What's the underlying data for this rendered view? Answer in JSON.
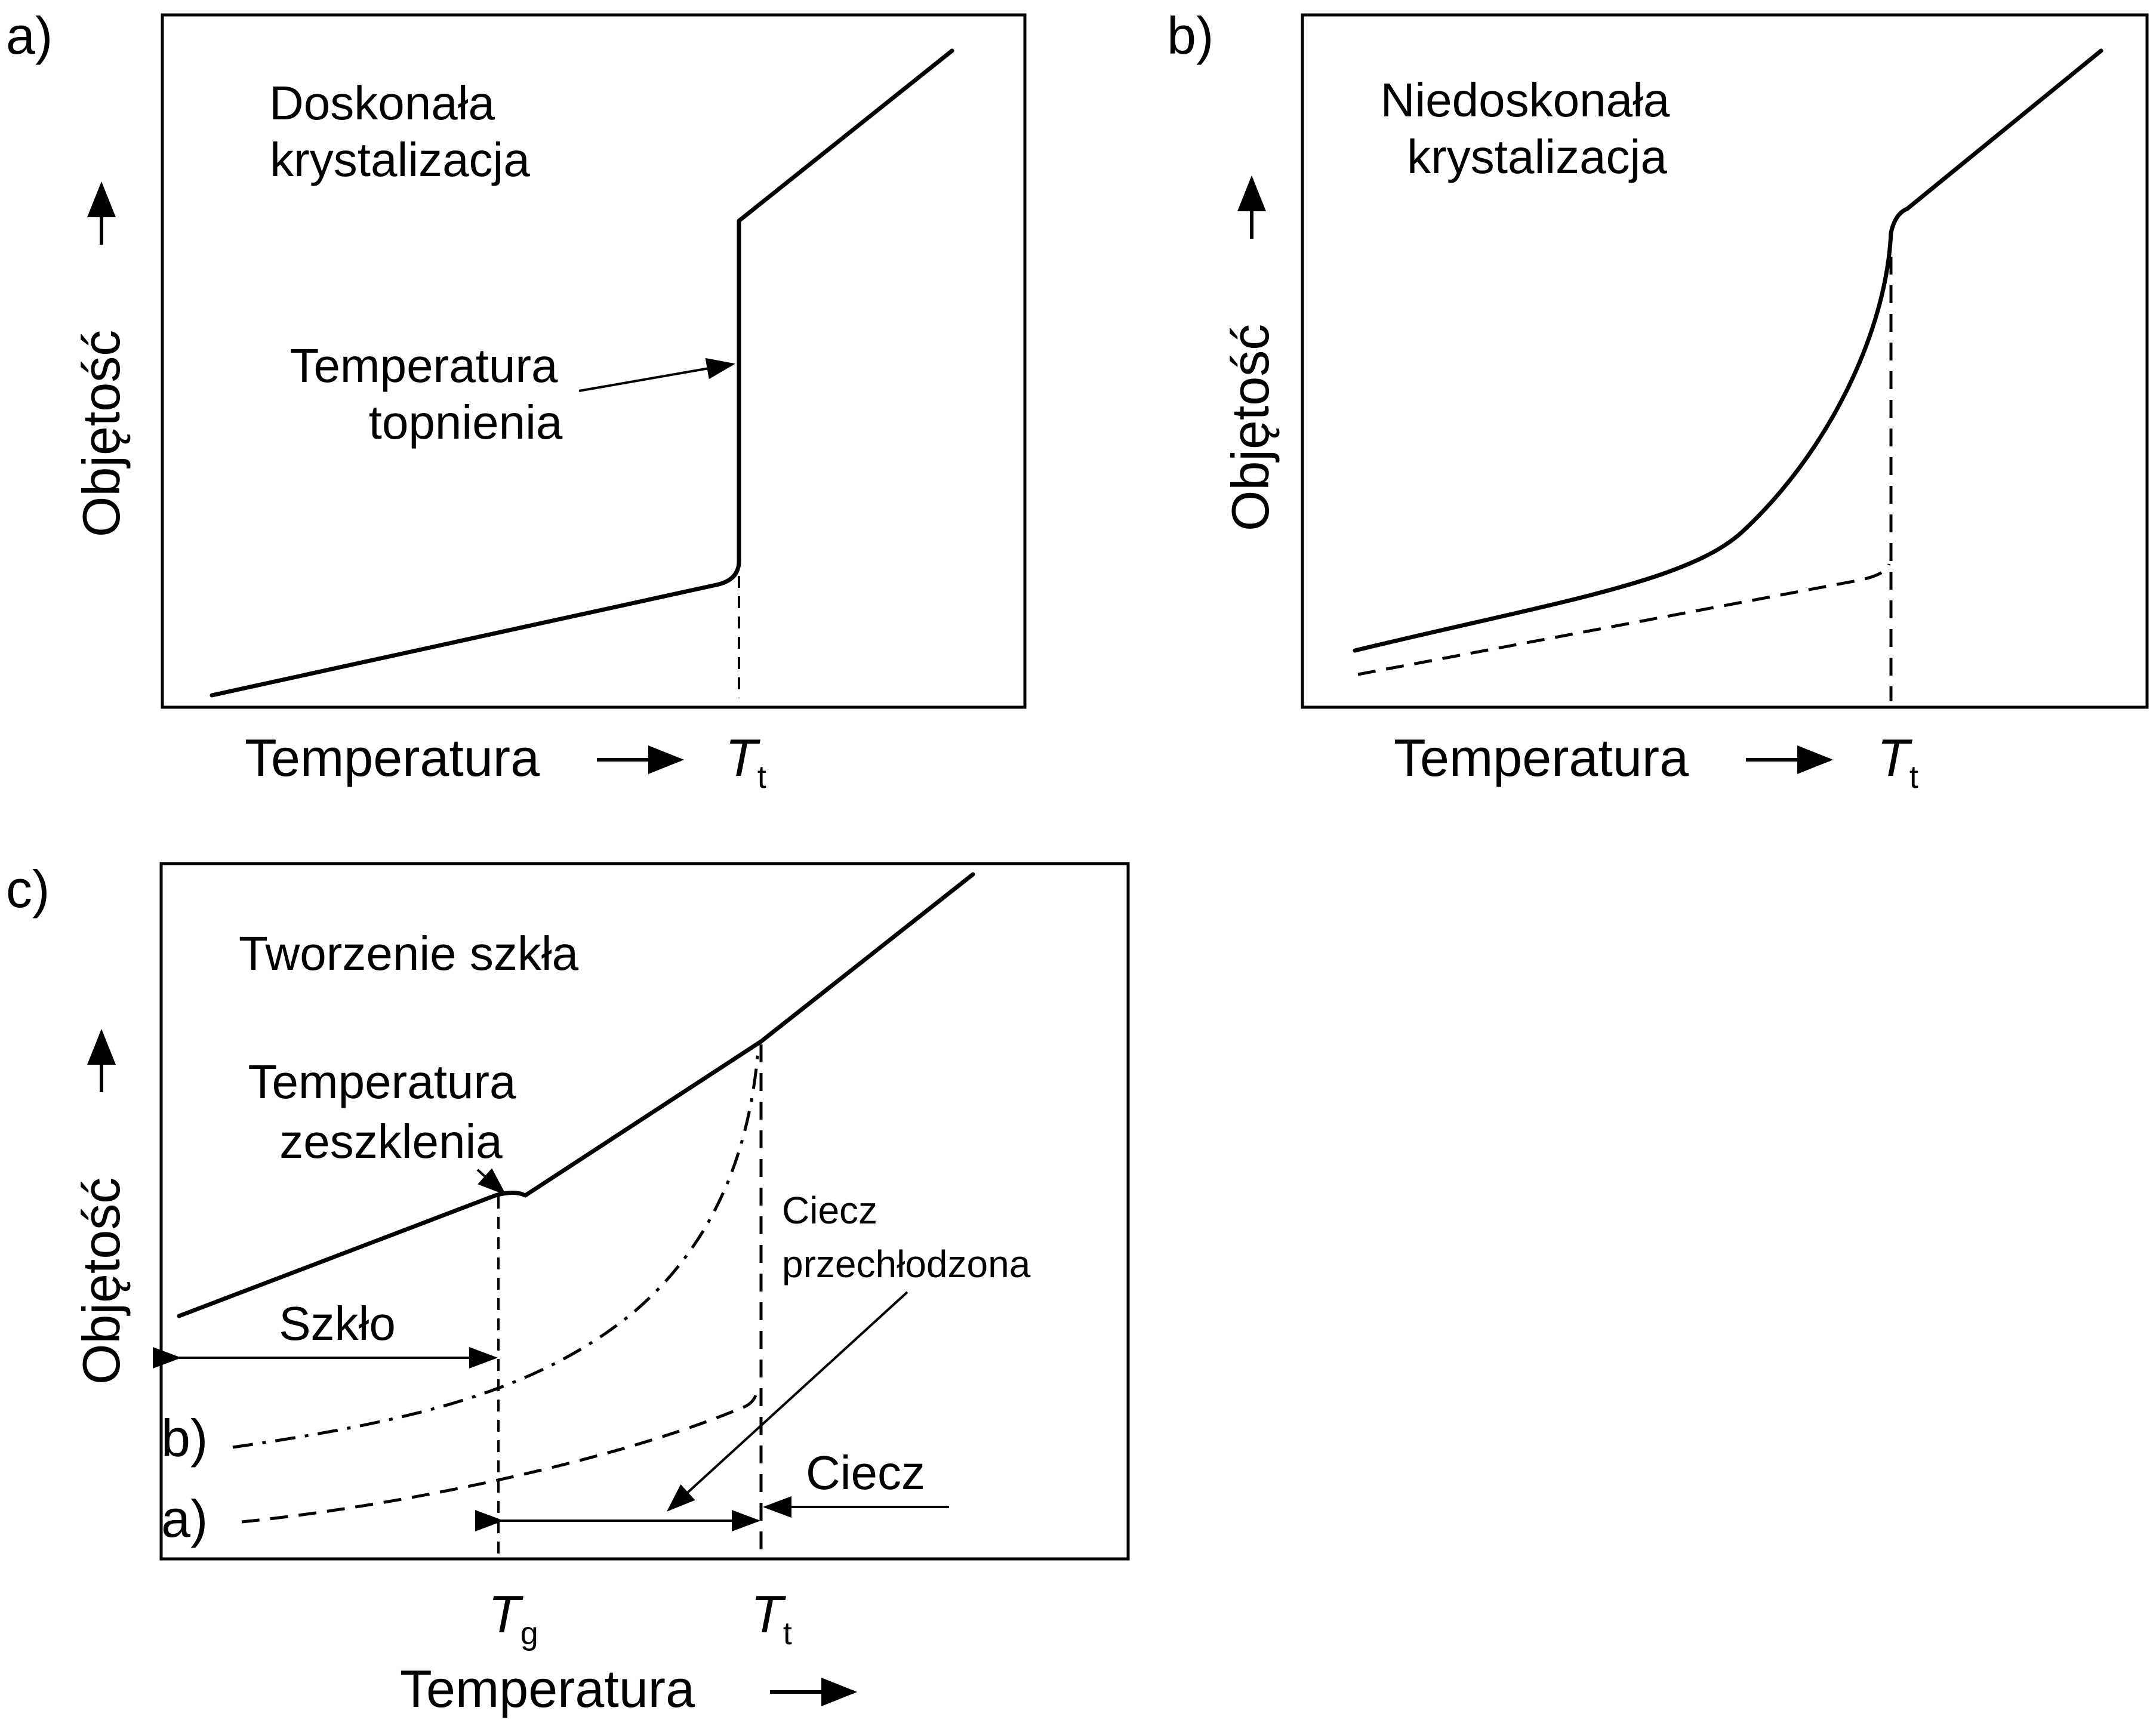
{
  "panel_a": {
    "tag": "a)",
    "title_line1": "Doskonała",
    "title_line2": "krystalizacja",
    "ylabel": "Objętość",
    "xlabel": "Temperatura",
    "annotation_line1": "Temperatura",
    "annotation_line2": "topnienia",
    "tick_symbol": "T",
    "tick_subscript": "t"
  },
  "panel_b": {
    "tag": "b)",
    "title_line1": "Niedoskonała",
    "title_line2": "krystalizacja",
    "ylabel": "Objętość",
    "xlabel": "Temperatura",
    "tick_symbol": "T",
    "tick_subscript": "t"
  },
  "panel_c": {
    "tag": "c)",
    "title": "Tworzenie szkła",
    "ylabel": "Objętość",
    "xlabel": "Temperatura",
    "annotation_glass_line1": "Temperatura",
    "annotation_glass_line2": "zeszklenia",
    "label_glass": "Szkło",
    "label_supercooled_line1": "Ciecz",
    "label_supercooled_line2": "przechłodzona",
    "label_liquid": "Ciecz",
    "curve_b": "b)",
    "curve_a": "a)",
    "tick_g_symbol": "T",
    "tick_g_subscript": "g",
    "tick_t_symbol": "T",
    "tick_t_subscript": "t"
  }
}
